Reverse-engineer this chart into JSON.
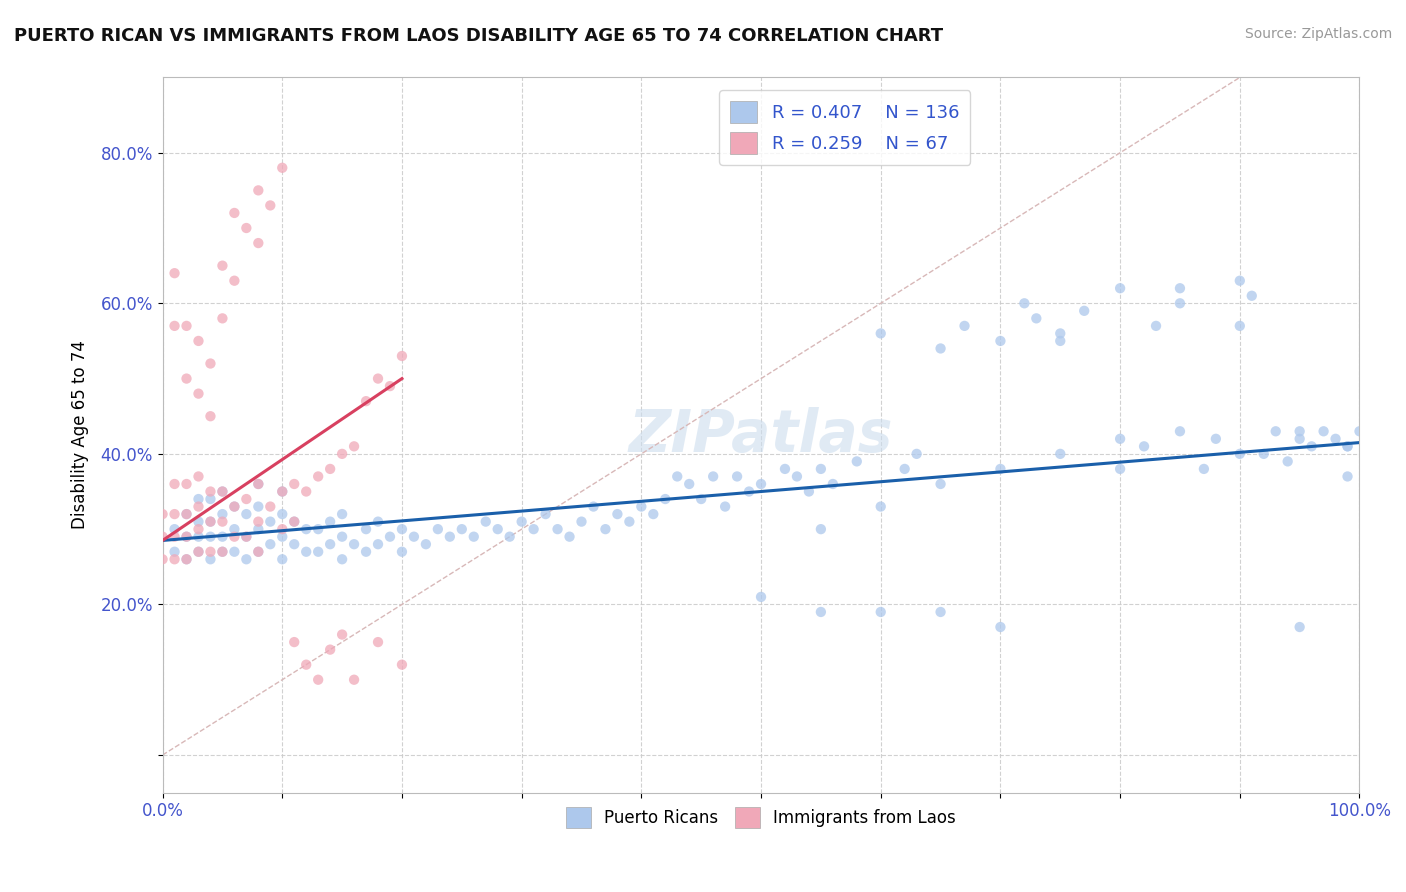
{
  "title": "PUERTO RICAN VS IMMIGRANTS FROM LAOS DISABILITY AGE 65 TO 74 CORRELATION CHART",
  "source": "Source: ZipAtlas.com",
  "ylabel": "Disability Age 65 to 74",
  "xlim": [
    0.0,
    1.0
  ],
  "ylim": [
    -0.05,
    0.9
  ],
  "blue_R": 0.407,
  "blue_N": 136,
  "pink_R": 0.259,
  "pink_N": 67,
  "blue_color": "#adc8ec",
  "pink_color": "#f0a8b8",
  "blue_line_color": "#1a5faa",
  "pink_line_color": "#d84060",
  "diagonal_color": "#d8b8b8",
  "watermark": "ZIPatlas",
  "blue_line_x0": 0.0,
  "blue_line_y0": 0.285,
  "blue_line_x1": 1.0,
  "blue_line_y1": 0.415,
  "pink_line_x0": 0.0,
  "pink_line_y0": 0.285,
  "pink_line_x1": 0.2,
  "pink_line_y1": 0.5,
  "blue_points_x": [
    0.01,
    0.01,
    0.02,
    0.02,
    0.02,
    0.03,
    0.03,
    0.03,
    0.03,
    0.04,
    0.04,
    0.04,
    0.04,
    0.05,
    0.05,
    0.05,
    0.05,
    0.06,
    0.06,
    0.06,
    0.07,
    0.07,
    0.07,
    0.08,
    0.08,
    0.08,
    0.08,
    0.09,
    0.09,
    0.1,
    0.1,
    0.1,
    0.1,
    0.11,
    0.11,
    0.12,
    0.12,
    0.13,
    0.13,
    0.14,
    0.14,
    0.15,
    0.15,
    0.15,
    0.16,
    0.17,
    0.17,
    0.18,
    0.18,
    0.19,
    0.2,
    0.2,
    0.21,
    0.22,
    0.23,
    0.24,
    0.25,
    0.26,
    0.27,
    0.28,
    0.29,
    0.3,
    0.31,
    0.32,
    0.33,
    0.34,
    0.35,
    0.36,
    0.37,
    0.38,
    0.39,
    0.4,
    0.41,
    0.42,
    0.43,
    0.44,
    0.45,
    0.46,
    0.47,
    0.48,
    0.49,
    0.5,
    0.52,
    0.53,
    0.54,
    0.55,
    0.56,
    0.58,
    0.6,
    0.62,
    0.63,
    0.65,
    0.67,
    0.7,
    0.72,
    0.73,
    0.75,
    0.77,
    0.8,
    0.82,
    0.83,
    0.85,
    0.87,
    0.88,
    0.9,
    0.91,
    0.92,
    0.93,
    0.94,
    0.95,
    0.96,
    0.97,
    0.98,
    0.99,
    1.0,
    0.5,
    0.55,
    0.6,
    0.65,
    0.7,
    0.75,
    0.8,
    0.85,
    0.9,
    0.95,
    0.99,
    0.55,
    0.6,
    0.65,
    0.7,
    0.75,
    0.8,
    0.85,
    0.9,
    0.95,
    0.99
  ],
  "blue_points_y": [
    0.27,
    0.3,
    0.26,
    0.29,
    0.32,
    0.27,
    0.29,
    0.31,
    0.34,
    0.26,
    0.29,
    0.31,
    0.34,
    0.27,
    0.29,
    0.32,
    0.35,
    0.27,
    0.3,
    0.33,
    0.26,
    0.29,
    0.32,
    0.27,
    0.3,
    0.33,
    0.36,
    0.28,
    0.31,
    0.26,
    0.29,
    0.32,
    0.35,
    0.28,
    0.31,
    0.27,
    0.3,
    0.27,
    0.3,
    0.28,
    0.31,
    0.26,
    0.29,
    0.32,
    0.28,
    0.27,
    0.3,
    0.28,
    0.31,
    0.29,
    0.27,
    0.3,
    0.29,
    0.28,
    0.3,
    0.29,
    0.3,
    0.29,
    0.31,
    0.3,
    0.29,
    0.31,
    0.3,
    0.32,
    0.3,
    0.29,
    0.31,
    0.33,
    0.3,
    0.32,
    0.31,
    0.33,
    0.32,
    0.34,
    0.37,
    0.36,
    0.34,
    0.37,
    0.33,
    0.37,
    0.35,
    0.36,
    0.38,
    0.37,
    0.35,
    0.38,
    0.36,
    0.39,
    0.56,
    0.38,
    0.4,
    0.54,
    0.57,
    0.55,
    0.6,
    0.58,
    0.56,
    0.59,
    0.38,
    0.41,
    0.57,
    0.6,
    0.38,
    0.42,
    0.57,
    0.61,
    0.4,
    0.43,
    0.39,
    0.42,
    0.41,
    0.43,
    0.42,
    0.41,
    0.43,
    0.21,
    0.19,
    0.19,
    0.19,
    0.17,
    0.55,
    0.62,
    0.62,
    0.63,
    0.17,
    0.37,
    0.3,
    0.33,
    0.36,
    0.38,
    0.4,
    0.42,
    0.43,
    0.4,
    0.43,
    0.41
  ],
  "pink_points_x": [
    0.0,
    0.0,
    0.0,
    0.01,
    0.01,
    0.01,
    0.01,
    0.02,
    0.02,
    0.02,
    0.02,
    0.03,
    0.03,
    0.03,
    0.03,
    0.04,
    0.04,
    0.04,
    0.05,
    0.05,
    0.05,
    0.06,
    0.06,
    0.07,
    0.07,
    0.08,
    0.08,
    0.08,
    0.09,
    0.1,
    0.1,
    0.11,
    0.11,
    0.12,
    0.13,
    0.14,
    0.15,
    0.16,
    0.17,
    0.18,
    0.19,
    0.2,
    0.01,
    0.01,
    0.02,
    0.02,
    0.03,
    0.03,
    0.04,
    0.04,
    0.05,
    0.05,
    0.06,
    0.06,
    0.07,
    0.08,
    0.08,
    0.09,
    0.1,
    0.11,
    0.12,
    0.13,
    0.14,
    0.15,
    0.16,
    0.18,
    0.2
  ],
  "pink_points_y": [
    0.26,
    0.29,
    0.32,
    0.26,
    0.29,
    0.32,
    0.36,
    0.26,
    0.29,
    0.32,
    0.36,
    0.27,
    0.3,
    0.33,
    0.37,
    0.27,
    0.31,
    0.35,
    0.27,
    0.31,
    0.35,
    0.29,
    0.33,
    0.29,
    0.34,
    0.27,
    0.31,
    0.36,
    0.33,
    0.3,
    0.35,
    0.31,
    0.36,
    0.35,
    0.37,
    0.38,
    0.4,
    0.41,
    0.47,
    0.5,
    0.49,
    0.53,
    0.57,
    0.64,
    0.5,
    0.57,
    0.48,
    0.55,
    0.45,
    0.52,
    0.58,
    0.65,
    0.63,
    0.72,
    0.7,
    0.68,
    0.75,
    0.73,
    0.78,
    0.15,
    0.12,
    0.1,
    0.14,
    0.16,
    0.1,
    0.15,
    0.12
  ]
}
